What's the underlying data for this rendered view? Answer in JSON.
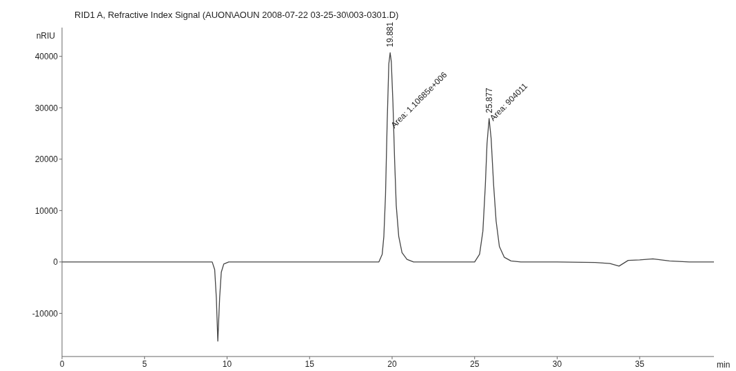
{
  "chart_data": {
    "type": "line",
    "title": "RID1 A, Refractive Index Signal (AUON\\AOUN 2008-07-22 03-25-30\\003-0301.D)",
    "xlabel": "min",
    "ylabel": "nRIU",
    "x": [
      0,
      3,
      6,
      8.8,
      9.1,
      9.25,
      9.35,
      9.44,
      9.55,
      9.65,
      9.8,
      10.1,
      13,
      16,
      19.2,
      19.4,
      19.5,
      19.6,
      19.7,
      19.8,
      19.881,
      19.95,
      20.05,
      20.15,
      20.25,
      20.4,
      20.6,
      20.9,
      21.3,
      23,
      25,
      25.3,
      25.5,
      25.65,
      25.75,
      25.877,
      26,
      26.15,
      26.3,
      26.5,
      26.8,
      27.2,
      27.8,
      30,
      32.3,
      33.2,
      33.75,
      34.3,
      35,
      35.8,
      36.8,
      38,
      39.5
    ],
    "series": [
      {
        "color": "#444444",
        "values": [
          0,
          0,
          0,
          0,
          0,
          -1500,
          -7000,
          -15400,
          -7000,
          -2000,
          -400,
          0,
          0,
          0,
          0,
          1500,
          5000,
          13000,
          27000,
          38500,
          40700,
          39000,
          31000,
          20000,
          11000,
          5000,
          1800,
          500,
          0,
          0,
          0,
          1500,
          6000,
          15000,
          23000,
          27900,
          24000,
          15000,
          8000,
          3000,
          900,
          200,
          0,
          0,
          -100,
          -300,
          -800,
          300,
          400,
          600,
          200,
          0,
          0
        ]
      }
    ],
    "xlim": [
      0,
      39.5
    ],
    "xticks": [
      0,
      5,
      10,
      15,
      20,
      25,
      30,
      35
    ],
    "ylim": [
      -18400,
      45600
    ],
    "yticks": [
      -10000,
      0,
      10000,
      20000,
      30000,
      40000
    ],
    "grid": false,
    "legend": false,
    "marker": "none",
    "line_style": "solid",
    "annotations": [
      "19.881",
      "Area: 1.10685e+006",
      "25.877",
      "Area: 904011"
    ]
  }
}
